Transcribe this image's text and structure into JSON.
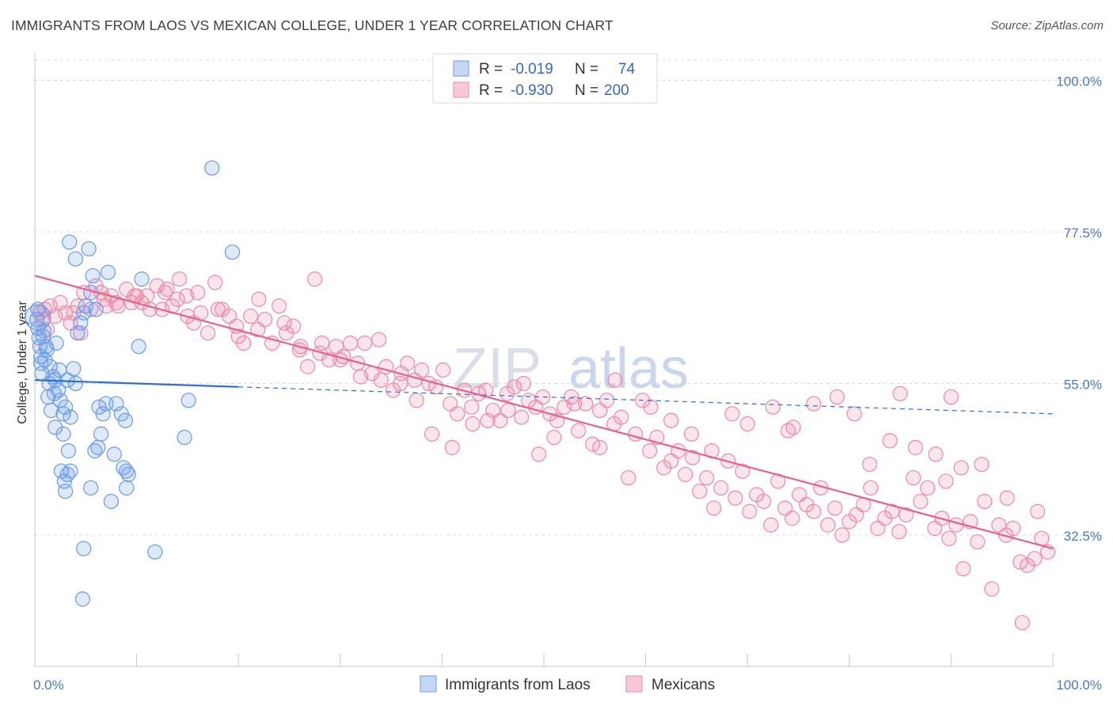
{
  "title": "IMMIGRANTS FROM LAOS VS MEXICAN COLLEGE, UNDER 1 YEAR CORRELATION CHART",
  "source": "Source: ZipAtlas.com",
  "chart_data": {
    "type": "scatter",
    "ylabel": "College, Under 1 year",
    "x_tick_labels": [
      "0.0%",
      "100.0%"
    ],
    "y_tick_labels": [
      "100.0%",
      "77.5%",
      "55.0%",
      "32.5%"
    ],
    "y_ticks": [
      100.0,
      77.5,
      55.0,
      32.5
    ],
    "xlim": [
      0,
      100
    ],
    "ylim": [
      13,
      103
    ],
    "grid": true,
    "colors": {
      "laos": "#6a9be6",
      "mexicans": "#ee88a8",
      "laos_line": "#2f6fce",
      "mexicans_line": "#e8608e"
    },
    "legend": {
      "placement": "top-center",
      "rows": [
        {
          "r_label": "R =",
          "r_value": "-0.019",
          "n_label": "N =",
          "n_value": "74"
        },
        {
          "r_label": "R =",
          "r_value": "-0.930",
          "n_label": "N =",
          "n_value": "200"
        }
      ]
    },
    "watermark": {
      "zip": "ZIP",
      "atlas": "atlas"
    },
    "series": [
      {
        "name": "Immigrants from Laos",
        "trend": {
          "x": [
            0,
            20,
            100
          ],
          "y": [
            55.5,
            54.5,
            50.5
          ],
          "solid_until": 20
        },
        "points": [
          [
            0.3,
            63.2
          ],
          [
            0.4,
            61.8
          ],
          [
            0.5,
            60.5
          ],
          [
            0.6,
            59.0
          ],
          [
            0.8,
            62.0
          ],
          [
            1.0,
            58.5
          ],
          [
            1.2,
            60.0
          ],
          [
            1.5,
            57.5
          ],
          [
            0.7,
            56.5
          ],
          [
            1.8,
            56.0
          ],
          [
            2.0,
            55.5
          ],
          [
            2.3,
            54.0
          ],
          [
            1.3,
            53.0
          ],
          [
            2.5,
            52.5
          ],
          [
            3.0,
            51.5
          ],
          [
            1.6,
            51.0
          ],
          [
            2.8,
            50.5
          ],
          [
            3.5,
            50.0
          ],
          [
            2.0,
            48.5
          ],
          [
            2.4,
            57.0
          ],
          [
            3.8,
            57.2
          ],
          [
            3.2,
            55.5
          ],
          [
            4.0,
            55.0
          ],
          [
            4.5,
            64.0
          ],
          [
            4.2,
            62.5
          ],
          [
            5.0,
            66.5
          ],
          [
            4.8,
            65.5
          ],
          [
            6.0,
            66.0
          ],
          [
            5.5,
            68.5
          ],
          [
            3.4,
            76.0
          ],
          [
            4.0,
            73.5
          ],
          [
            5.3,
            75.0
          ],
          [
            5.7,
            71.0
          ],
          [
            7.2,
            71.5
          ],
          [
            10.5,
            70.5
          ],
          [
            17.4,
            87.0
          ],
          [
            19.4,
            74.5
          ],
          [
            10.2,
            60.5
          ],
          [
            2.8,
            47.5
          ],
          [
            3.3,
            45.0
          ],
          [
            6.2,
            45.5
          ],
          [
            6.5,
            47.5
          ],
          [
            8.0,
            52.0
          ],
          [
            7.0,
            52.0
          ],
          [
            6.7,
            50.5
          ],
          [
            8.5,
            50.5
          ],
          [
            8.9,
            49.5
          ],
          [
            9.0,
            42.0
          ],
          [
            9.2,
            41.5
          ],
          [
            8.7,
            42.5
          ],
          [
            2.6,
            42.0
          ],
          [
            3.2,
            41.5
          ],
          [
            3.5,
            42.0
          ],
          [
            2.9,
            40.5
          ],
          [
            3.0,
            39.0
          ],
          [
            5.5,
            39.5
          ],
          [
            7.5,
            37.5
          ],
          [
            9.0,
            39.5
          ],
          [
            4.8,
            30.5
          ],
          [
            11.8,
            30.0
          ],
          [
            4.7,
            23.0
          ],
          [
            15.1,
            52.5
          ],
          [
            14.7,
            47.0
          ],
          [
            1.1,
            60.5
          ],
          [
            0.2,
            64.5
          ],
          [
            0.9,
            62.8
          ],
          [
            2.1,
            61.0
          ],
          [
            1.9,
            53.5
          ],
          [
            6.3,
            51.5
          ],
          [
            7.8,
            44.5
          ],
          [
            0.6,
            58.0
          ],
          [
            1.4,
            55.0
          ],
          [
            0.3,
            66.0
          ],
          [
            5.9,
            45.0
          ]
        ]
      },
      {
        "name": "Mexicans",
        "trend": {
          "x": [
            0,
            100
          ],
          "y": [
            71.0,
            30.5
          ]
        },
        "points": [
          [
            0.5,
            65.5
          ],
          [
            0.8,
            64.5
          ],
          [
            1.5,
            66.5
          ],
          [
            1.2,
            63.0
          ],
          [
            2.5,
            67.0
          ],
          [
            3.0,
            65.5
          ],
          [
            3.5,
            64.0
          ],
          [
            4.2,
            66.5
          ],
          [
            4.8,
            68.5
          ],
          [
            5.5,
            66.0
          ],
          [
            6.0,
            69.5
          ],
          [
            6.8,
            67.5
          ],
          [
            7.5,
            68.0
          ],
          [
            8.2,
            66.5
          ],
          [
            9.0,
            69.0
          ],
          [
            9.8,
            68.0
          ],
          [
            10.5,
            67.0
          ],
          [
            11.3,
            66.0
          ],
          [
            12.0,
            69.5
          ],
          [
            12.8,
            68.5
          ],
          [
            13.5,
            66.5
          ],
          [
            14.2,
            70.5
          ],
          [
            14.9,
            68.0
          ],
          [
            15.6,
            64.0
          ],
          [
            16.3,
            65.5
          ],
          [
            17.0,
            62.5
          ],
          [
            17.7,
            70.0
          ],
          [
            18.4,
            66.0
          ],
          [
            19.1,
            65.0
          ],
          [
            19.8,
            63.5
          ],
          [
            20.5,
            61.0
          ],
          [
            21.2,
            65.0
          ],
          [
            21.9,
            63.0
          ],
          [
            22.6,
            64.5
          ],
          [
            23.3,
            61.0
          ],
          [
            24.0,
            66.5
          ],
          [
            24.7,
            62.5
          ],
          [
            25.4,
            63.5
          ],
          [
            26.1,
            60.5
          ],
          [
            26.8,
            57.5
          ],
          [
            27.5,
            70.5
          ],
          [
            28.2,
            61.0
          ],
          [
            28.9,
            58.5
          ],
          [
            29.6,
            60.5
          ],
          [
            30.3,
            59.0
          ],
          [
            31.0,
            61.0
          ],
          [
            31.7,
            58.0
          ],
          [
            32.4,
            61.0
          ],
          [
            33.1,
            56.5
          ],
          [
            33.8,
            61.5
          ],
          [
            34.5,
            57.5
          ],
          [
            35.2,
            54.0
          ],
          [
            35.9,
            55.0
          ],
          [
            36.6,
            58.0
          ],
          [
            37.3,
            55.5
          ],
          [
            38.0,
            57.0
          ],
          [
            38.7,
            55.0
          ],
          [
            39.4,
            54.5
          ],
          [
            40.1,
            57.0
          ],
          [
            40.8,
            52.0
          ],
          [
            41.5,
            50.5
          ],
          [
            42.2,
            54.0
          ],
          [
            42.9,
            51.5
          ],
          [
            43.6,
            53.5
          ],
          [
            44.3,
            54.0
          ],
          [
            45.0,
            51.0
          ],
          [
            45.7,
            49.5
          ],
          [
            46.4,
            53.5
          ],
          [
            47.1,
            54.5
          ],
          [
            47.8,
            50.0
          ],
          [
            48.5,
            52.5
          ],
          [
            49.2,
            51.5
          ],
          [
            49.9,
            53.0
          ],
          [
            50.6,
            50.5
          ],
          [
            51.3,
            49.5
          ],
          [
            52.0,
            51.5
          ],
          [
            52.7,
            53.0
          ],
          [
            53.4,
            48.0
          ],
          [
            54.1,
            52.0
          ],
          [
            54.8,
            46.0
          ],
          [
            55.5,
            51.0
          ],
          [
            56.2,
            52.5
          ],
          [
            56.9,
            49.0
          ],
          [
            57.6,
            50.0
          ],
          [
            58.3,
            41.0
          ],
          [
            59.0,
            47.5
          ],
          [
            59.7,
            52.5
          ],
          [
            60.4,
            45.0
          ],
          [
            61.1,
            47.0
          ],
          [
            61.8,
            42.5
          ],
          [
            62.5,
            43.5
          ],
          [
            63.2,
            45.0
          ],
          [
            63.9,
            41.5
          ],
          [
            64.6,
            44.0
          ],
          [
            65.3,
            39.0
          ],
          [
            66.0,
            41.0
          ],
          [
            66.7,
            36.5
          ],
          [
            67.4,
            39.5
          ],
          [
            68.1,
            43.5
          ],
          [
            68.8,
            38.0
          ],
          [
            69.5,
            42.0
          ],
          [
            70.2,
            36.0
          ],
          [
            70.9,
            38.5
          ],
          [
            71.6,
            37.5
          ],
          [
            72.3,
            34.0
          ],
          [
            73.0,
            40.5
          ],
          [
            73.7,
            36.5
          ],
          [
            74.4,
            35.0
          ],
          [
            75.1,
            38.5
          ],
          [
            75.8,
            37.0
          ],
          [
            76.5,
            36.0
          ],
          [
            77.2,
            39.5
          ],
          [
            77.9,
            34.0
          ],
          [
            78.6,
            36.5
          ],
          [
            79.3,
            32.5
          ],
          [
            80.0,
            34.5
          ],
          [
            80.7,
            35.5
          ],
          [
            81.4,
            37.0
          ],
          [
            82.1,
            39.5
          ],
          [
            82.8,
            33.5
          ],
          [
            83.5,
            35.0
          ],
          [
            84.2,
            36.0
          ],
          [
            84.9,
            33.0
          ],
          [
            85.6,
            35.5
          ],
          [
            86.3,
            41.0
          ],
          [
            87.0,
            37.5
          ],
          [
            87.7,
            39.5
          ],
          [
            88.4,
            33.5
          ],
          [
            89.1,
            35.0
          ],
          [
            89.8,
            32.0
          ],
          [
            90.5,
            34.0
          ],
          [
            91.2,
            27.5
          ],
          [
            91.9,
            34.5
          ],
          [
            92.6,
            31.5
          ],
          [
            93.3,
            37.5
          ],
          [
            94.0,
            24.5
          ],
          [
            94.7,
            34.0
          ],
          [
            95.4,
            32.5
          ],
          [
            96.1,
            33.5
          ],
          [
            96.8,
            28.5
          ],
          [
            97.5,
            28.0
          ],
          [
            98.2,
            29.0
          ],
          [
            98.9,
            32.0
          ],
          [
            99.5,
            30.0
          ],
          [
            97.0,
            19.5
          ],
          [
            98.5,
            36.0
          ],
          [
            95.5,
            38.0
          ],
          [
            93.0,
            43.0
          ],
          [
            91.0,
            42.5
          ],
          [
            89.5,
            40.5
          ],
          [
            88.5,
            44.5
          ],
          [
            86.5,
            45.5
          ],
          [
            84.0,
            46.5
          ],
          [
            82.0,
            43.0
          ],
          [
            80.5,
            50.5
          ],
          [
            78.8,
            53.0
          ],
          [
            76.5,
            52.0
          ],
          [
            74.0,
            48.0
          ],
          [
            72.5,
            51.5
          ],
          [
            70.0,
            49.0
          ],
          [
            68.5,
            50.5
          ],
          [
            66.5,
            45.0
          ],
          [
            64.5,
            47.5
          ],
          [
            62.5,
            49.5
          ],
          [
            60.5,
            51.5
          ],
          [
            57.0,
            55.5
          ],
          [
            55.5,
            45.5
          ],
          [
            53.0,
            52.0
          ],
          [
            51.0,
            47.0
          ],
          [
            49.5,
            44.5
          ],
          [
            48.0,
            55.0
          ],
          [
            46.5,
            51.0
          ],
          [
            44.5,
            49.5
          ],
          [
            43.0,
            49.0
          ],
          [
            41.0,
            45.5
          ],
          [
            39.0,
            47.5
          ],
          [
            37.5,
            52.5
          ],
          [
            36.0,
            56.5
          ],
          [
            34.0,
            55.5
          ],
          [
            32.0,
            56.0
          ],
          [
            30.0,
            58.5
          ],
          [
            28.0,
            59.5
          ],
          [
            26.0,
            60.0
          ],
          [
            24.5,
            64.0
          ],
          [
            22.0,
            67.5
          ],
          [
            20.0,
            62.0
          ],
          [
            18.0,
            66.0
          ],
          [
            16.0,
            68.5
          ],
          [
            14.0,
            67.5
          ],
          [
            12.5,
            66.0
          ],
          [
            10.0,
            68.0
          ],
          [
            8.0,
            67.0
          ],
          [
            6.5,
            68.5
          ],
          [
            3.8,
            65.5
          ],
          [
            2.0,
            65.0
          ],
          [
            1.0,
            66.0
          ],
          [
            4.5,
            62.5
          ],
          [
            7.0,
            66.5
          ],
          [
            9.5,
            67.0
          ],
          [
            11.0,
            68.0
          ],
          [
            13.0,
            69.0
          ],
          [
            15.0,
            65.0
          ],
          [
            90.0,
            53.0
          ],
          [
            85.0,
            53.5
          ],
          [
            74.5,
            48.5
          ]
        ]
      }
    ]
  }
}
